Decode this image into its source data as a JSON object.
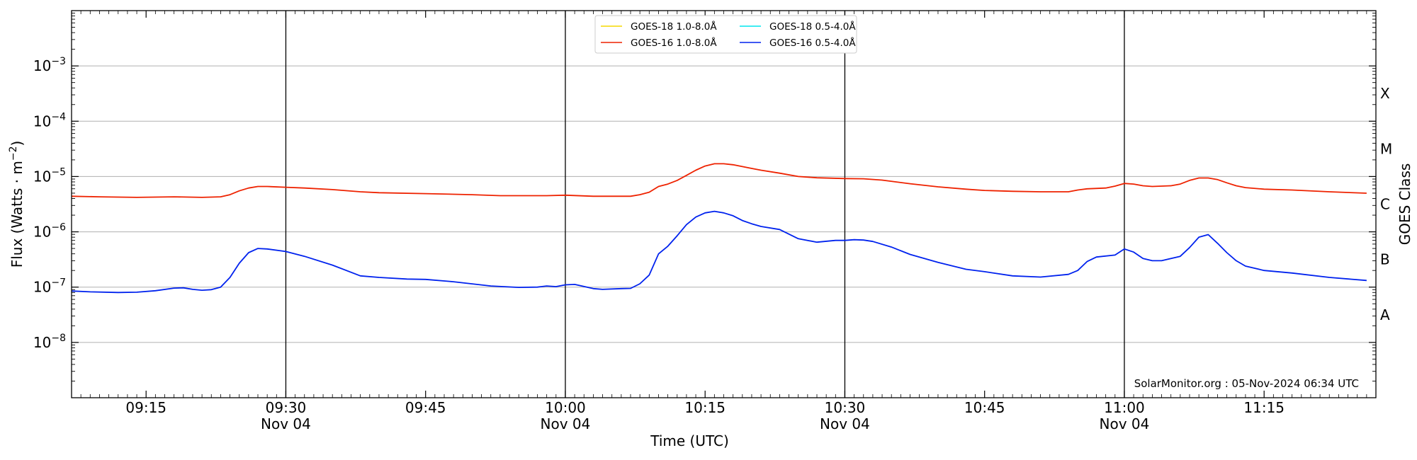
{
  "chart_data": {
    "type": "line",
    "title": "",
    "xlabel": "Time (UTC)",
    "ylabel": "Flux (Watts · m⁻²)",
    "y2label": "GOES Class",
    "yscale": "log",
    "xlim": [
      "09:07",
      "11:27"
    ],
    "ylim": [
      1e-09,
      0.01
    ],
    "y_ticks": [
      {
        "value": 1e-08,
        "mantissa": "10",
        "exp": "−8"
      },
      {
        "value": 1e-07,
        "mantissa": "10",
        "exp": "−7"
      },
      {
        "value": 1e-06,
        "mantissa": "10",
        "exp": "−6"
      },
      {
        "value": 1e-05,
        "mantissa": "10",
        "exp": "−5"
      },
      {
        "value": 0.0001,
        "mantissa": "10",
        "exp": "−4"
      },
      {
        "value": 0.001,
        "mantissa": "10",
        "exp": "−3"
      }
    ],
    "x_ticks": [
      {
        "time": "09:15",
        "label": "09:15",
        "date": ""
      },
      {
        "time": "09:30",
        "label": "09:30",
        "date": "Nov 04"
      },
      {
        "time": "09:45",
        "label": "09:45",
        "date": ""
      },
      {
        "time": "10:00",
        "label": "10:00",
        "date": "Nov 04"
      },
      {
        "time": "10:15",
        "label": "10:15",
        "date": ""
      },
      {
        "time": "10:30",
        "label": "10:30",
        "date": "Nov 04"
      },
      {
        "time": "10:45",
        "label": "10:45",
        "date": ""
      },
      {
        "time": "11:00",
        "label": "11:00",
        "date": "Nov 04"
      },
      {
        "time": "11:15",
        "label": "11:15",
        "date": ""
      }
    ],
    "vertical_lines": [
      "09:30",
      "10:00",
      "10:30",
      "11:00"
    ],
    "goes_classes": [
      {
        "label": "X",
        "value": 0.000316
      },
      {
        "label": "M",
        "value": 3.16e-05
      },
      {
        "label": "C",
        "value": 3.16e-06
      },
      {
        "label": "B",
        "value": 3.16e-07
      },
      {
        "label": "A",
        "value": 3.16e-08
      }
    ],
    "grid": "horizontal",
    "legend_position": "top-center",
    "legend": [
      {
        "name": "GOES-18 1.0-8.0Å",
        "color": "#f5d800"
      },
      {
        "name": "GOES-18 0.5-4.0Å",
        "color": "#00e5ee"
      },
      {
        "name": "GOES-16 1.0-8.0Å",
        "color": "#ee2200"
      },
      {
        "name": "GOES-16 0.5-4.0Å",
        "color": "#0022ee"
      }
    ],
    "series": [
      {
        "name": "GOES-16 1.0-8.0Å",
        "color": "#ee2200",
        "points": [
          [
            "09:07",
            4.4e-06
          ],
          [
            "09:10",
            4.3e-06
          ],
          [
            "09:14",
            4.2e-06
          ],
          [
            "09:18",
            4.3e-06
          ],
          [
            "09:21",
            4.2e-06
          ],
          [
            "09:23",
            4.3e-06
          ],
          [
            "09:24",
            4.7e-06
          ],
          [
            "09:25",
            5.5e-06
          ],
          [
            "09:26",
            6.2e-06
          ],
          [
            "09:27",
            6.6e-06
          ],
          [
            "09:28",
            6.6e-06
          ],
          [
            "09:30",
            6.4e-06
          ],
          [
            "09:32",
            6.2e-06
          ],
          [
            "09:35",
            5.8e-06
          ],
          [
            "09:38",
            5.3e-06
          ],
          [
            "09:40",
            5.1e-06
          ],
          [
            "09:45",
            4.9e-06
          ],
          [
            "09:50",
            4.7e-06
          ],
          [
            "09:53",
            4.5e-06
          ],
          [
            "09:58",
            4.5e-06
          ],
          [
            "10:00",
            4.6e-06
          ],
          [
            "10:03",
            4.4e-06
          ],
          [
            "10:07",
            4.4e-06
          ],
          [
            "10:08",
            4.7e-06
          ],
          [
            "10:09",
            5.2e-06
          ],
          [
            "10:10",
            6.6e-06
          ],
          [
            "10:11",
            7.3e-06
          ],
          [
            "10:12",
            8.5e-06
          ],
          [
            "10:13",
            1.05e-05
          ],
          [
            "10:14",
            1.3e-05
          ],
          [
            "10:15",
            1.55e-05
          ],
          [
            "10:16",
            1.7e-05
          ],
          [
            "10:17",
            1.7e-05
          ],
          [
            "10:18",
            1.63e-05
          ],
          [
            "10:20",
            1.4e-05
          ],
          [
            "10:21",
            1.3e-05
          ],
          [
            "10:23",
            1.15e-05
          ],
          [
            "10:25",
            1e-05
          ],
          [
            "10:27",
            9.5e-06
          ],
          [
            "10:30",
            9.2e-06
          ],
          [
            "10:32",
            9.1e-06
          ],
          [
            "10:34",
            8.6e-06
          ],
          [
            "10:37",
            7.4e-06
          ],
          [
            "10:40",
            6.5e-06
          ],
          [
            "10:43",
            5.9e-06
          ],
          [
            "10:45",
            5.6e-06
          ],
          [
            "10:48",
            5.4e-06
          ],
          [
            "10:51",
            5.3e-06
          ],
          [
            "10:54",
            5.3e-06
          ],
          [
            "10:55",
            5.7e-06
          ],
          [
            "10:56",
            6e-06
          ],
          [
            "10:58",
            6.2e-06
          ],
          [
            "10:59",
            6.7e-06
          ],
          [
            "11:00",
            7.5e-06
          ],
          [
            "11:01",
            7.3e-06
          ],
          [
            "11:02",
            6.8e-06
          ],
          [
            "11:03",
            6.6e-06
          ],
          [
            "11:05",
            6.8e-06
          ],
          [
            "11:06",
            7.3e-06
          ],
          [
            "11:07",
            8.5e-06
          ],
          [
            "11:08",
            9.4e-06
          ],
          [
            "11:09",
            9.4e-06
          ],
          [
            "11:10",
            8.8e-06
          ],
          [
            "11:11",
            7.7e-06
          ],
          [
            "11:12",
            6.8e-06
          ],
          [
            "11:13",
            6.3e-06
          ],
          [
            "11:15",
            5.9e-06
          ],
          [
            "11:18",
            5.7e-06
          ],
          [
            "11:22",
            5.3e-06
          ],
          [
            "11:26",
            5e-06
          ]
        ]
      },
      {
        "name": "GOES-16 0.5-4.0Å",
        "color": "#0022ee",
        "points": [
          [
            "09:07",
            8.5e-08
          ],
          [
            "09:09",
            8.2e-08
          ],
          [
            "09:12",
            8e-08
          ],
          [
            "09:14",
            8.1e-08
          ],
          [
            "09:16",
            8.6e-08
          ],
          [
            "09:18",
            9.6e-08
          ],
          [
            "09:19",
            9.7e-08
          ],
          [
            "09:20",
            9.1e-08
          ],
          [
            "09:21",
            8.8e-08
          ],
          [
            "09:22",
            9e-08
          ],
          [
            "09:23",
            1e-07
          ],
          [
            "09:24",
            1.5e-07
          ],
          [
            "09:25",
            2.7e-07
          ],
          [
            "09:26",
            4.2e-07
          ],
          [
            "09:27",
            5e-07
          ],
          [
            "09:28",
            4.9e-07
          ],
          [
            "09:30",
            4.4e-07
          ],
          [
            "09:32",
            3.6e-07
          ],
          [
            "09:35",
            2.5e-07
          ],
          [
            "09:38",
            1.6e-07
          ],
          [
            "09:40",
            1.5e-07
          ],
          [
            "09:43",
            1.4e-07
          ],
          [
            "09:45",
            1.38e-07
          ],
          [
            "09:48",
            1.25e-07
          ],
          [
            "09:52",
            1.05e-07
          ],
          [
            "09:55",
            9.9e-08
          ],
          [
            "09:57",
            1e-07
          ],
          [
            "09:58",
            1.05e-07
          ],
          [
            "09:59",
            1.02e-07
          ],
          [
            "10:00",
            1.1e-07
          ],
          [
            "10:01",
            1.12e-07
          ],
          [
            "10:03",
            9.4e-08
          ],
          [
            "10:04",
            9.1e-08
          ],
          [
            "10:06",
            9.4e-08
          ],
          [
            "10:07",
            9.5e-08
          ],
          [
            "10:08",
            1.15e-07
          ],
          [
            "10:09",
            1.65e-07
          ],
          [
            "10:10",
            4e-07
          ],
          [
            "10:11",
            5.5e-07
          ],
          [
            "10:12",
            8.5e-07
          ],
          [
            "10:13",
            1.35e-06
          ],
          [
            "10:14",
            1.85e-06
          ],
          [
            "10:15",
            2.2e-06
          ],
          [
            "10:16",
            2.35e-06
          ],
          [
            "10:17",
            2.2e-06
          ],
          [
            "10:18",
            1.95e-06
          ],
          [
            "10:19",
            1.6e-06
          ],
          [
            "10:20",
            1.4e-06
          ],
          [
            "10:21",
            1.25e-06
          ],
          [
            "10:23",
            1.1e-06
          ],
          [
            "10:25",
            7.5e-07
          ],
          [
            "10:27",
            6.5e-07
          ],
          [
            "10:29",
            7e-07
          ],
          [
            "10:30",
            7e-07
          ],
          [
            "10:31",
            7.2e-07
          ],
          [
            "10:32",
            7.1e-07
          ],
          [
            "10:33",
            6.7e-07
          ],
          [
            "10:35",
            5.3e-07
          ],
          [
            "10:37",
            3.9e-07
          ],
          [
            "10:40",
            2.8e-07
          ],
          [
            "10:43",
            2.1e-07
          ],
          [
            "10:45",
            1.9e-07
          ],
          [
            "10:48",
            1.6e-07
          ],
          [
            "10:51",
            1.52e-07
          ],
          [
            "10:54",
            1.7e-07
          ],
          [
            "10:55",
            2e-07
          ],
          [
            "10:56",
            2.9e-07
          ],
          [
            "10:57",
            3.5e-07
          ],
          [
            "10:59",
            3.8e-07
          ],
          [
            "11:00",
            4.9e-07
          ],
          [
            "11:01",
            4.3e-07
          ],
          [
            "11:02",
            3.3e-07
          ],
          [
            "11:03",
            3e-07
          ],
          [
            "11:04",
            3e-07
          ],
          [
            "11:06",
            3.6e-07
          ],
          [
            "11:07",
            5.2e-07
          ],
          [
            "11:08",
            8e-07
          ],
          [
            "11:09",
            8.9e-07
          ],
          [
            "11:10",
            6.2e-07
          ],
          [
            "11:11",
            4.2e-07
          ],
          [
            "11:12",
            3e-07
          ],
          [
            "11:13",
            2.4e-07
          ],
          [
            "11:15",
            2e-07
          ],
          [
            "11:18",
            1.8e-07
          ],
          [
            "11:22",
            1.5e-07
          ],
          [
            "11:26",
            1.32e-07
          ]
        ]
      }
    ],
    "annotation": "SolarMonitor.org : 05-Nov-2024 06:34 UTC"
  }
}
